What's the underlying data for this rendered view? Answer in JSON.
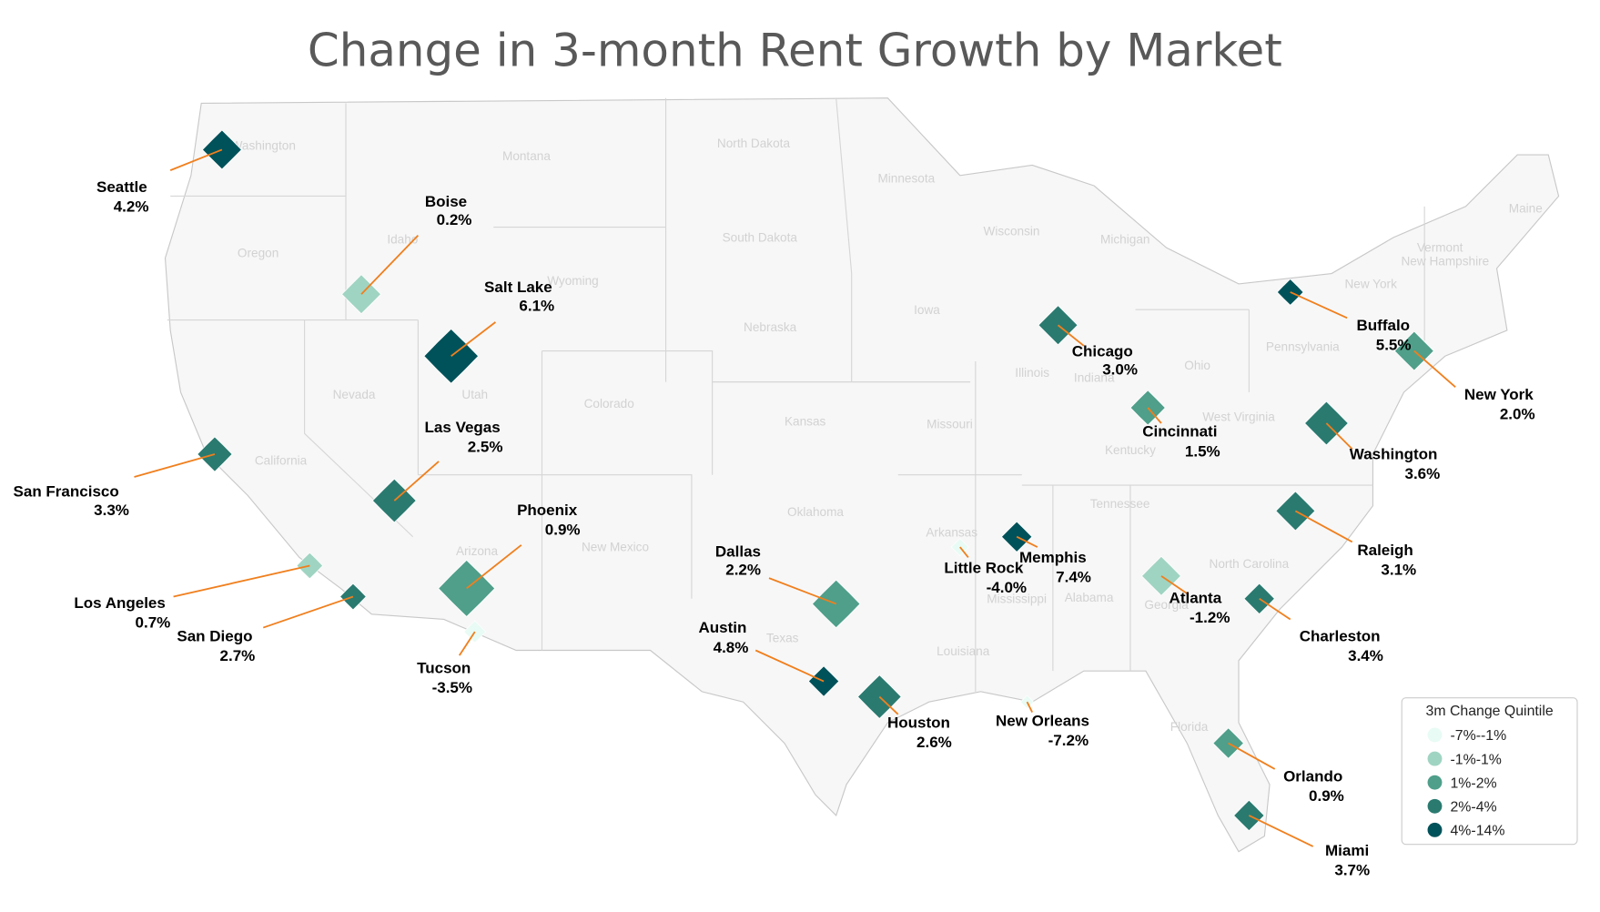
{
  "title": "Change in 3-month Rent Growth by Market",
  "state_labels": [
    "Washington",
    "Montana",
    "North Dakota",
    "Minnesota",
    "Oregon",
    "Idaho",
    "Wyoming",
    "South Dakota",
    "Wisconsin",
    "Michigan",
    "Maine",
    "Vermont",
    "New Hampshire",
    "New York",
    "Nebraska",
    "Iowa",
    "Nevada",
    "Utah",
    "Colorado",
    "Kansas",
    "Missouri",
    "Illinois",
    "Indiana",
    "Ohio",
    "Pennsylvania",
    "West Virginia",
    "Kentucky",
    "California",
    "Arizona",
    "New Mexico",
    "Oklahoma",
    "Arkansas",
    "Tennessee",
    "North Carolina",
    "Georgia",
    "Alabama",
    "Mississippi",
    "Louisiana",
    "Texas",
    "Florida"
  ],
  "markets": [
    {
      "name": "Seattle",
      "value": 4.2,
      "value_label": "4.2%",
      "color": "#00525a"
    },
    {
      "name": "Boise",
      "value": 0.2,
      "value_label": "0.2%",
      "color": "#a0d4c2"
    },
    {
      "name": "Salt Lake",
      "value": 6.1,
      "value_label": "6.1%",
      "color": "#00525a"
    },
    {
      "name": "Las Vegas",
      "value": 2.5,
      "value_label": "2.5%",
      "color": "#2a7a70"
    },
    {
      "name": "San Francisco",
      "value": 3.3,
      "value_label": "3.3%",
      "color": "#2a7a70"
    },
    {
      "name": "Los Angeles",
      "value": 0.7,
      "value_label": "0.7%",
      "color": "#a0d4c2"
    },
    {
      "name": "San Diego",
      "value": 2.7,
      "value_label": "2.7%",
      "color": "#2a7a70"
    },
    {
      "name": "Phoenix",
      "value": 0.9,
      "value_label": "0.9%",
      "color": "#4f9f8a"
    },
    {
      "name": "Tucson",
      "value": -3.5,
      "value_label": "-3.5%",
      "color": "#e8fbf4"
    },
    {
      "name": "Dallas",
      "value": 2.2,
      "value_label": "2.2%",
      "color": "#4f9f8a"
    },
    {
      "name": "Austin",
      "value": 4.8,
      "value_label": "4.8%",
      "color": "#00525a"
    },
    {
      "name": "Houston",
      "value": 2.6,
      "value_label": "2.6%",
      "color": "#2a7a70"
    },
    {
      "name": "Little Rock",
      "value": -4.0,
      "value_label": "-4.0%",
      "color": "#e8fbf4"
    },
    {
      "name": "Memphis",
      "value": 7.4,
      "value_label": "7.4%",
      "color": "#00525a"
    },
    {
      "name": "New Orleans",
      "value": -7.2,
      "value_label": "-7.2%",
      "color": "#e8fbf4"
    },
    {
      "name": "Atlanta",
      "value": -1.2,
      "value_label": "-1.2%",
      "color": "#a0d4c2"
    },
    {
      "name": "Chicago",
      "value": 3.0,
      "value_label": "3.0%",
      "color": "#2a7a70"
    },
    {
      "name": "Cincinnati",
      "value": 1.5,
      "value_label": "1.5%",
      "color": "#4f9f8a"
    },
    {
      "name": "Charleston",
      "value": 3.4,
      "value_label": "3.4%",
      "color": "#2a7a70"
    },
    {
      "name": "Raleigh",
      "value": 3.1,
      "value_label": "3.1%",
      "color": "#2a7a70"
    },
    {
      "name": "Washington",
      "value": 3.6,
      "value_label": "3.6%",
      "color": "#2a7a70"
    },
    {
      "name": "New York",
      "value": 2.0,
      "value_label": "2.0%",
      "color": "#4f9f8a"
    },
    {
      "name": "Buffalo",
      "value": 5.5,
      "value_label": "5.5%",
      "color": "#00525a"
    },
    {
      "name": "Orlando",
      "value": 0.9,
      "value_label": "0.9%",
      "color": "#4f9f8a"
    },
    {
      "name": "Miami",
      "value": 3.7,
      "value_label": "3.7%",
      "color": "#2a7a70"
    }
  ],
  "legend": {
    "title": "3m Change Quintile",
    "entries": [
      {
        "label": "-7%--1%",
        "color": "#e8fbf4"
      },
      {
        "label": "-1%-1%",
        "color": "#a0d4c2"
      },
      {
        "label": "1%-2%",
        "color": "#4f9f8a"
      },
      {
        "label": "2%-4%",
        "color": "#2a7a70"
      },
      {
        "label": "4%-14%",
        "color": "#00525a"
      }
    ]
  }
}
